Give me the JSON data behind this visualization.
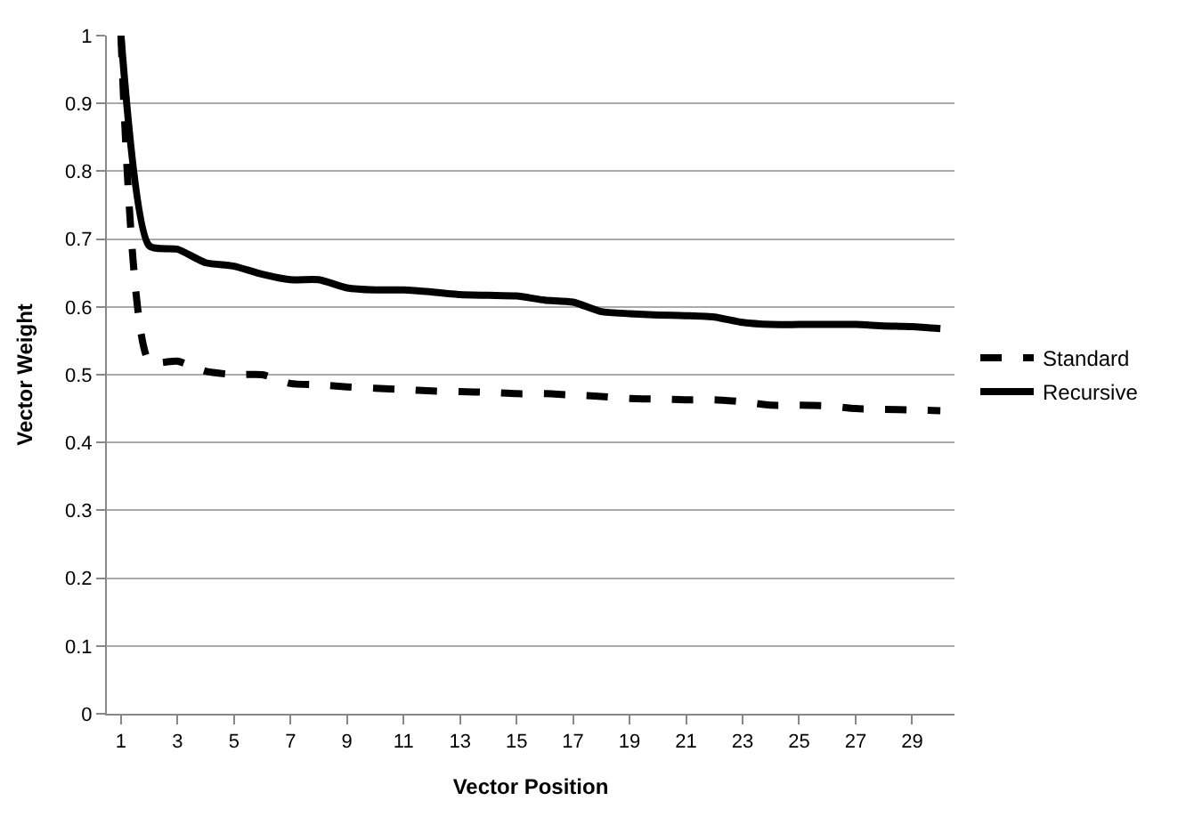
{
  "chart_data": {
    "type": "line",
    "xlabel": "Vector Position",
    "ylabel": "Vector Weight",
    "x": [
      1,
      2,
      3,
      4,
      5,
      6,
      7,
      8,
      9,
      10,
      11,
      12,
      13,
      14,
      15,
      16,
      17,
      18,
      19,
      20,
      21,
      22,
      23,
      24,
      25,
      26,
      27,
      28,
      29,
      30
    ],
    "series": [
      {
        "name": "Standard",
        "color": "#000000",
        "line_style": "dashed",
        "values": [
          1.0,
          0.52,
          0.52,
          0.505,
          0.5,
          0.5,
          0.487,
          0.485,
          0.482,
          0.48,
          0.478,
          0.476,
          0.475,
          0.474,
          0.472,
          0.472,
          0.47,
          0.468,
          0.465,
          0.464,
          0.463,
          0.463,
          0.46,
          0.455,
          0.455,
          0.454,
          0.45,
          0.449,
          0.448,
          0.447
        ]
      },
      {
        "name": "Recursive",
        "color": "#000000",
        "line_style": "solid",
        "values": [
          1.0,
          0.69,
          0.685,
          0.665,
          0.66,
          0.648,
          0.64,
          0.64,
          0.628,
          0.625,
          0.625,
          0.622,
          0.618,
          0.617,
          0.616,
          0.61,
          0.607,
          0.593,
          0.59,
          0.588,
          0.587,
          0.585,
          0.577,
          0.574,
          0.574,
          0.574,
          0.574,
          0.572,
          0.571,
          0.568
        ]
      }
    ],
    "xlim": [
      0.5,
      30.5
    ],
    "xticks": [
      1,
      3,
      5,
      7,
      9,
      11,
      13,
      15,
      17,
      19,
      21,
      23,
      25,
      27,
      29
    ],
    "ylim": [
      0,
      1
    ],
    "yticks": [
      0,
      0.1,
      0.2,
      0.3,
      0.4,
      0.5,
      0.6,
      0.7,
      0.8,
      0.9,
      1
    ],
    "grid": "y",
    "legend": "right",
    "marker": "none"
  }
}
